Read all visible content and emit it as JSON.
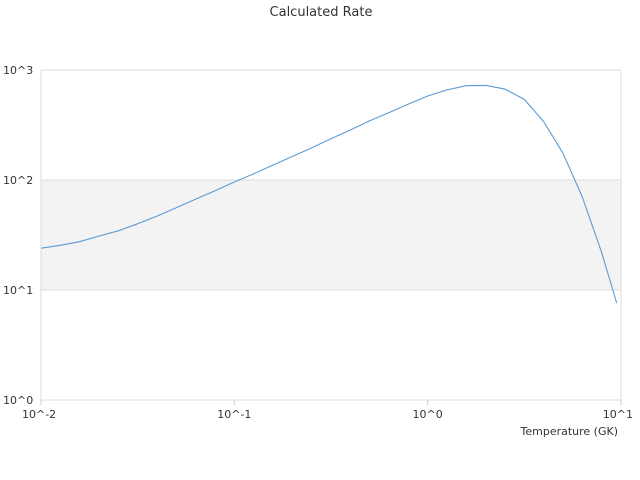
{
  "chart_data": {
    "type": "line",
    "title": "Calculated Rate",
    "xlabel": "Temperature (GK)",
    "ylabel": "",
    "xscale": "log",
    "yscale": "log",
    "xlim": [
      0.01,
      10
    ],
    "ylim": [
      1,
      1000
    ],
    "grid": "alternating bands",
    "legend": "none",
    "x_ticks": [
      {
        "value": 0.01,
        "label": "10^-2"
      },
      {
        "value": 0.1,
        "label": "10^-1"
      },
      {
        "value": 1,
        "label": "10^0"
      },
      {
        "value": 10,
        "label": "10^1"
      }
    ],
    "y_ticks": [
      {
        "value": 1,
        "label": "10^0"
      },
      {
        "value": 10,
        "label": "10^1"
      },
      {
        "value": 100,
        "label": "10^2"
      },
      {
        "value": 1000,
        "label": "10^3"
      }
    ],
    "series": [
      {
        "color": "#5b9bd5",
        "x": [
          0.01,
          0.0126,
          0.0158,
          0.02,
          0.0251,
          0.0316,
          0.0398,
          0.0501,
          0.0631,
          0.0794,
          0.1,
          0.126,
          0.158,
          0.2,
          0.251,
          0.316,
          0.398,
          0.501,
          0.631,
          0.794,
          1.0,
          1.26,
          1.58,
          2.0,
          2.51,
          3.16,
          3.98,
          5.01,
          6.31,
          7.94,
          9.5
        ],
        "y": [
          24,
          25.5,
          27.5,
          31,
          34.5,
          40,
          47,
          56,
          67,
          80,
          96,
          114,
          136,
          164,
          196,
          237,
          285,
          345,
          410,
          490,
          580,
          660,
          720,
          725,
          670,
          540,
          340,
          175,
          70,
          22,
          7.6
        ]
      }
    ]
  }
}
